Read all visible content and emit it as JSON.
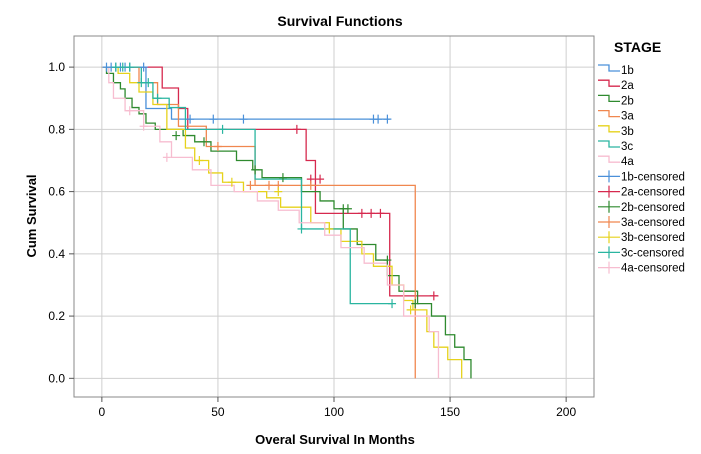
{
  "chart_data": {
    "type": "line",
    "title": "Survival Functions",
    "xlabel": "Overal Survival In Months",
    "ylabel": "Cum Survival",
    "xlim": [
      -12,
      212
    ],
    "ylim": [
      -0.06,
      1.1
    ],
    "xticks": [
      0,
      50,
      100,
      150,
      200
    ],
    "yticks": [
      0.0,
      0.2,
      0.4,
      0.6,
      0.8,
      1.0
    ],
    "ytick_labels": [
      "0.0",
      "0.2",
      "0.4",
      "0.6",
      "0.8",
      "1.0"
    ],
    "grid": true,
    "legend_title": "STAGE",
    "legend_position": "right",
    "series": [
      {
        "name": "1b",
        "color": "#4a90d9",
        "marker": "step",
        "x": [
          0,
          13,
          19,
          30,
          124
        ],
        "y": [
          1.0,
          1.0,
          0.867,
          0.833,
          0.833
        ]
      },
      {
        "name": "2a",
        "color": "#d6294e",
        "marker": "step",
        "x": [
          0,
          19,
          26,
          33,
          37,
          86,
          88,
          92,
          124,
          145
        ],
        "y": [
          1.0,
          1.0,
          0.933,
          0.867,
          0.8,
          0.8,
          0.7,
          0.53,
          0.265,
          0.265
        ]
      },
      {
        "name": "2b",
        "color": "#2f8a2f",
        "marker": "step",
        "x": [
          0,
          2,
          5,
          8,
          10,
          13,
          16,
          19,
          23,
          35,
          40,
          47,
          58,
          65,
          69,
          86,
          94,
          100,
          104,
          110,
          118,
          123,
          128,
          136,
          142,
          148,
          152,
          156,
          159
        ],
        "y": [
          1.0,
          0.98,
          0.95,
          0.93,
          0.9,
          0.87,
          0.85,
          0.82,
          0.8,
          0.78,
          0.76,
          0.73,
          0.7,
          0.67,
          0.645,
          0.6,
          0.57,
          0.545,
          0.48,
          0.43,
          0.38,
          0.33,
          0.28,
          0.24,
          0.2,
          0.14,
          0.1,
          0.06,
          0.0
        ]
      },
      {
        "name": "3a",
        "color": "#f0874f",
        "marker": "step",
        "x": [
          0,
          16,
          24,
          33,
          45,
          66,
          135
        ],
        "y": [
          1.0,
          0.95,
          0.88,
          0.81,
          0.745,
          0.62,
          0.0
        ]
      },
      {
        "name": "3b",
        "color": "#e6d21c",
        "marker": "step",
        "x": [
          0,
          7,
          12,
          16,
          22,
          28,
          36,
          40,
          46,
          52,
          61,
          71,
          77,
          90,
          98,
          103,
          112,
          117,
          125,
          130,
          134,
          140,
          143,
          149,
          155
        ],
        "y": [
          1.0,
          0.98,
          0.95,
          0.92,
          0.88,
          0.8,
          0.74,
          0.7,
          0.66,
          0.63,
          0.6,
          0.58,
          0.55,
          0.5,
          0.48,
          0.44,
          0.4,
          0.36,
          0.3,
          0.25,
          0.22,
          0.15,
          0.1,
          0.06,
          0.0
        ]
      },
      {
        "name": "3c",
        "color": "#2ab5a0",
        "marker": "step",
        "x": [
          0,
          17,
          22,
          29,
          36,
          66,
          86,
          107,
          125
        ],
        "y": [
          1.0,
          0.95,
          0.9,
          0.87,
          0.8,
          0.64,
          0.48,
          0.24,
          0.24
        ]
      },
      {
        "name": "4a",
        "color": "#f7bdd0",
        "marker": "step",
        "x": [
          0,
          3,
          5,
          10,
          18,
          25,
          30,
          39,
          47,
          57,
          67,
          76,
          85,
          96,
          103,
          113,
          123,
          130,
          141,
          145
        ],
        "y": [
          1.0,
          0.95,
          0.9,
          0.86,
          0.81,
          0.76,
          0.71,
          0.67,
          0.62,
          0.6,
          0.57,
          0.54,
          0.5,
          0.46,
          0.42,
          0.37,
          0.3,
          0.2,
          0.15,
          0.0
        ]
      },
      {
        "name": "1b-censored",
        "color": "#4a90d9",
        "marker": "censor",
        "x": [
          2,
          4,
          6,
          8,
          10,
          12,
          18,
          38,
          48,
          61,
          117,
          119,
          123
        ],
        "y": [
          1.0,
          1.0,
          1.0,
          1.0,
          1.0,
          1.0,
          1.0,
          0.833,
          0.833,
          0.833,
          0.833,
          0.833,
          0.833
        ]
      },
      {
        "name": "2a-censored",
        "color": "#d6294e",
        "marker": "censor",
        "x": [
          84,
          90,
          94,
          112,
          116,
          120,
          143
        ],
        "y": [
          0.8,
          0.64,
          0.64,
          0.53,
          0.53,
          0.53,
          0.265
        ]
      },
      {
        "name": "2b-censored",
        "color": "#2f8a2f",
        "marker": "censor",
        "x": [
          32,
          44,
          66,
          78,
          104,
          106,
          123,
          135
        ],
        "y": [
          0.78,
          0.76,
          0.67,
          0.645,
          0.545,
          0.545,
          0.38,
          0.24
        ]
      },
      {
        "name": "3a-censored",
        "color": "#f0874f",
        "marker": "censor",
        "x": [
          50,
          64,
          72,
          76,
          90
        ],
        "y": [
          0.745,
          0.62,
          0.62,
          0.62,
          0.62
        ]
      },
      {
        "name": "3b-censored",
        "color": "#e6d21c",
        "marker": "censor",
        "x": [
          42,
          56,
          76,
          98,
          133
        ],
        "y": [
          0.7,
          0.63,
          0.6,
          0.48,
          0.22
        ]
      },
      {
        "name": "3c-censored",
        "color": "#2ab5a0",
        "marker": "censor",
        "x": [
          6,
          9,
          12,
          17,
          20,
          24,
          52,
          86,
          125
        ],
        "y": [
          1.0,
          1.0,
          1.0,
          0.95,
          0.95,
          0.9,
          0.8,
          0.48,
          0.24
        ]
      },
      {
        "name": "4a-censored",
        "color": "#f7bdd0",
        "marker": "censor",
        "x": [
          12,
          18,
          28
        ],
        "y": [
          0.86,
          0.81,
          0.71
        ]
      }
    ]
  }
}
